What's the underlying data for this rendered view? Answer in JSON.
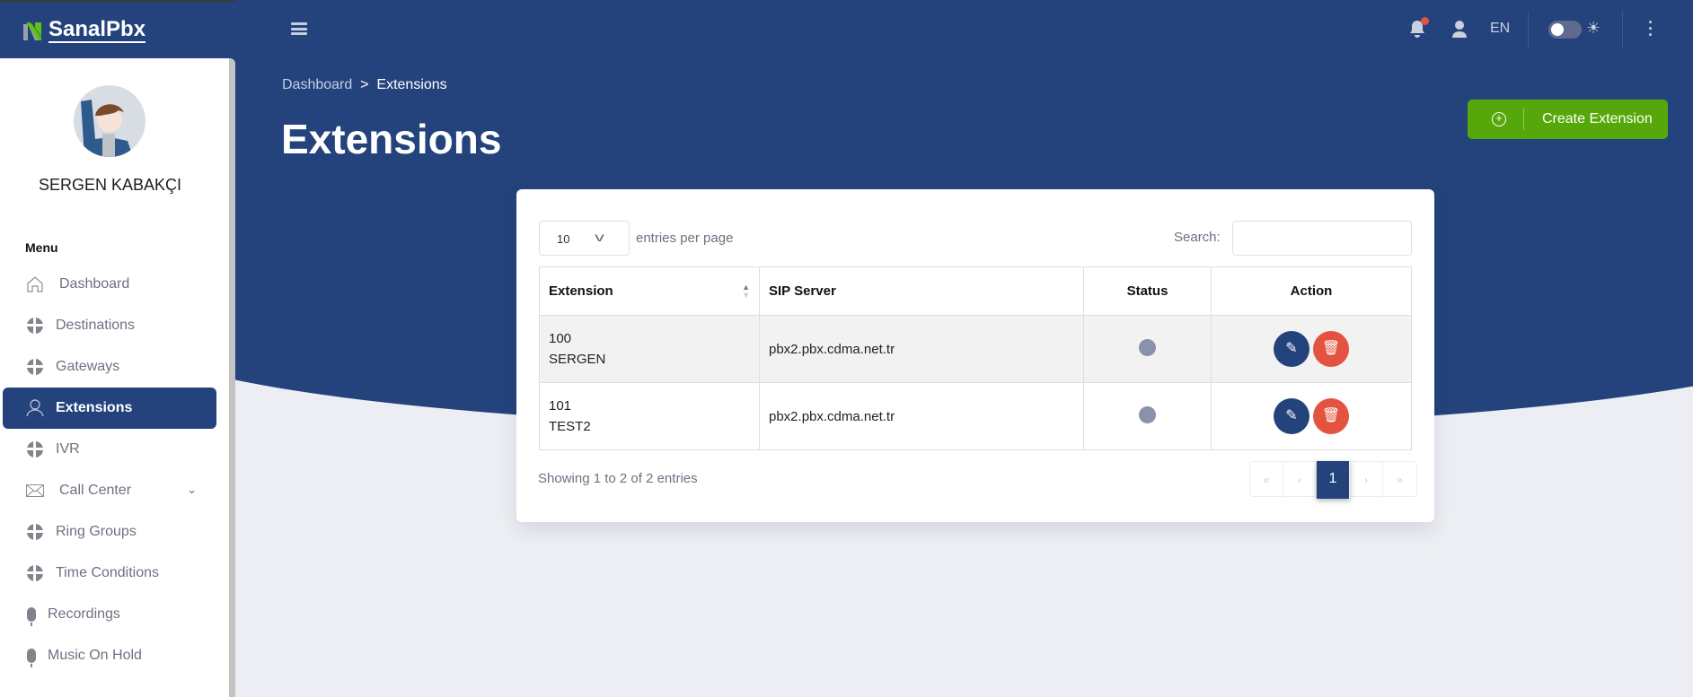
{
  "brand": {
    "name": "SanalPbx",
    "logo_letter": "N"
  },
  "topbar": {
    "language": "EN",
    "icons": [
      "menu-icon",
      "bell-icon",
      "user-icon",
      "theme-toggle",
      "sun-icon",
      "more-vertical-icon"
    ],
    "notification_dot": true
  },
  "user": {
    "name": "SERGEN KABAKÇI"
  },
  "sidebar": {
    "menu_title": "Menu",
    "items": [
      {
        "label": "Dashboard",
        "icon": "home-icon"
      },
      {
        "label": "Destinations",
        "icon": "globe-icon"
      },
      {
        "label": "Gateways",
        "icon": "globe-icon"
      },
      {
        "label": "Extensions",
        "icon": "user-icon",
        "active": true
      },
      {
        "label": "IVR",
        "icon": "globe-icon"
      },
      {
        "label": "Call Center",
        "icon": "envelope-icon",
        "expandable": true
      },
      {
        "label": "Ring Groups",
        "icon": "globe-icon"
      },
      {
        "label": "Time Conditions",
        "icon": "globe-icon"
      },
      {
        "label": "Recordings",
        "icon": "microphone-icon"
      },
      {
        "label": "Music On Hold",
        "icon": "microphone-icon"
      }
    ]
  },
  "breadcrumb": {
    "parent": "Dashboard",
    "separator": ">",
    "current": "Extensions"
  },
  "page": {
    "title": "Extensions",
    "create_button": "Create Extension"
  },
  "table": {
    "page_size": "10",
    "entries_label": "entries per page",
    "search_label": "Search:",
    "search_value": "",
    "columns": [
      "Extension",
      "SIP Server",
      "Status",
      "Action"
    ],
    "rows": [
      {
        "extension": "100",
        "name": "SERGEN",
        "sip_server": "pbx2.pbx.cdma.net.tr",
        "status": "offline"
      },
      {
        "extension": "101",
        "name": "TEST2",
        "sip_server": "pbx2.pbx.cdma.net.tr",
        "status": "offline"
      }
    ],
    "info": "Showing 1 to 2 of 2 entries",
    "pagination": {
      "first": "«",
      "prev": "‹",
      "current": "1",
      "next": "›",
      "last": "»"
    }
  },
  "colors": {
    "primary": "#24437c",
    "success": "#56a80a",
    "danger": "#e4533f",
    "status_offline": "#8a91ab",
    "background": "#eceef3"
  }
}
